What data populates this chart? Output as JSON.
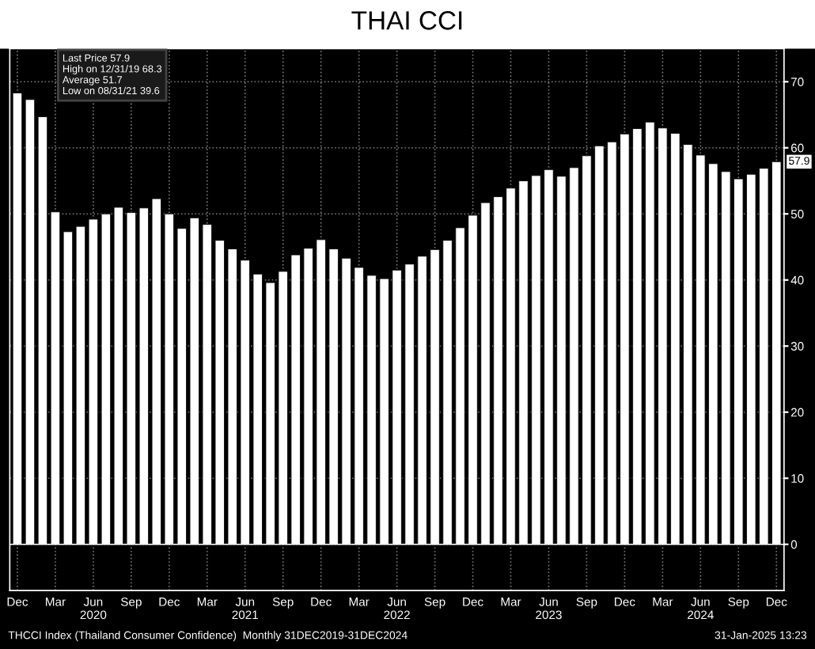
{
  "chart_data": {
    "type": "bar",
    "title": "THAI CCI",
    "categories": [
      "Dec",
      null,
      null,
      "Mar",
      null,
      null,
      "Jun\n2020",
      null,
      null,
      "Sep",
      null,
      null,
      "Dec",
      null,
      null,
      "Mar",
      null,
      null,
      "Jun\n2021",
      null,
      null,
      "Sep",
      null,
      null,
      "Dec",
      null,
      null,
      "Mar",
      null,
      null,
      "Jun\n2022",
      null,
      null,
      "Sep",
      null,
      null,
      "Dec",
      null,
      null,
      "Mar",
      null,
      null,
      "Jun\n2023",
      null,
      null,
      "Sep",
      null,
      null,
      "Dec",
      null,
      null,
      "Mar",
      null,
      null,
      "Jun\n2024",
      null,
      null,
      "Sep",
      null,
      null,
      "Dec"
    ],
    "values": [
      68.3,
      67.3,
      64.7,
      50.3,
      47.3,
      48.1,
      49.2,
      50.0,
      51.0,
      50.2,
      50.9,
      52.3,
      50.0,
      47.8,
      49.4,
      48.4,
      46.0,
      44.7,
      43.0,
      40.9,
      39.6,
      41.3,
      43.8,
      44.8,
      46.1,
      44.7,
      43.3,
      41.9,
      40.7,
      40.2,
      41.5,
      42.4,
      43.6,
      44.6,
      46.0,
      47.9,
      49.8,
      51.7,
      52.6,
      53.9,
      55.0,
      55.8,
      56.7,
      55.7,
      57.0,
      58.8,
      60.3,
      60.9,
      62.1,
      62.9,
      63.9,
      63.0,
      62.2,
      60.5,
      58.9,
      57.6,
      56.4,
      55.3,
      56.0,
      56.9,
      57.9
    ],
    "color": "#ffffff",
    "ylim": [
      -7,
      75
    ],
    "yticks": [
      0,
      10,
      20,
      30,
      40,
      50,
      60,
      70
    ],
    "grid": true,
    "annotations": [
      {
        "text": "Last Price 57.9"
      },
      {
        "text": "High on 12/31/19 68.3"
      },
      {
        "text": "Average 51.7"
      },
      {
        "text": "Low on 08/31/21 39.6"
      },
      {
        "text": "57.9",
        "y": 57.9
      },
      {
        "text": "THCCI Index (Thailand Consumer Confidence)  Monthly 31DEC2019-31DEC2024"
      },
      {
        "text": "31-Jan-2025 13:23"
      }
    ]
  }
}
